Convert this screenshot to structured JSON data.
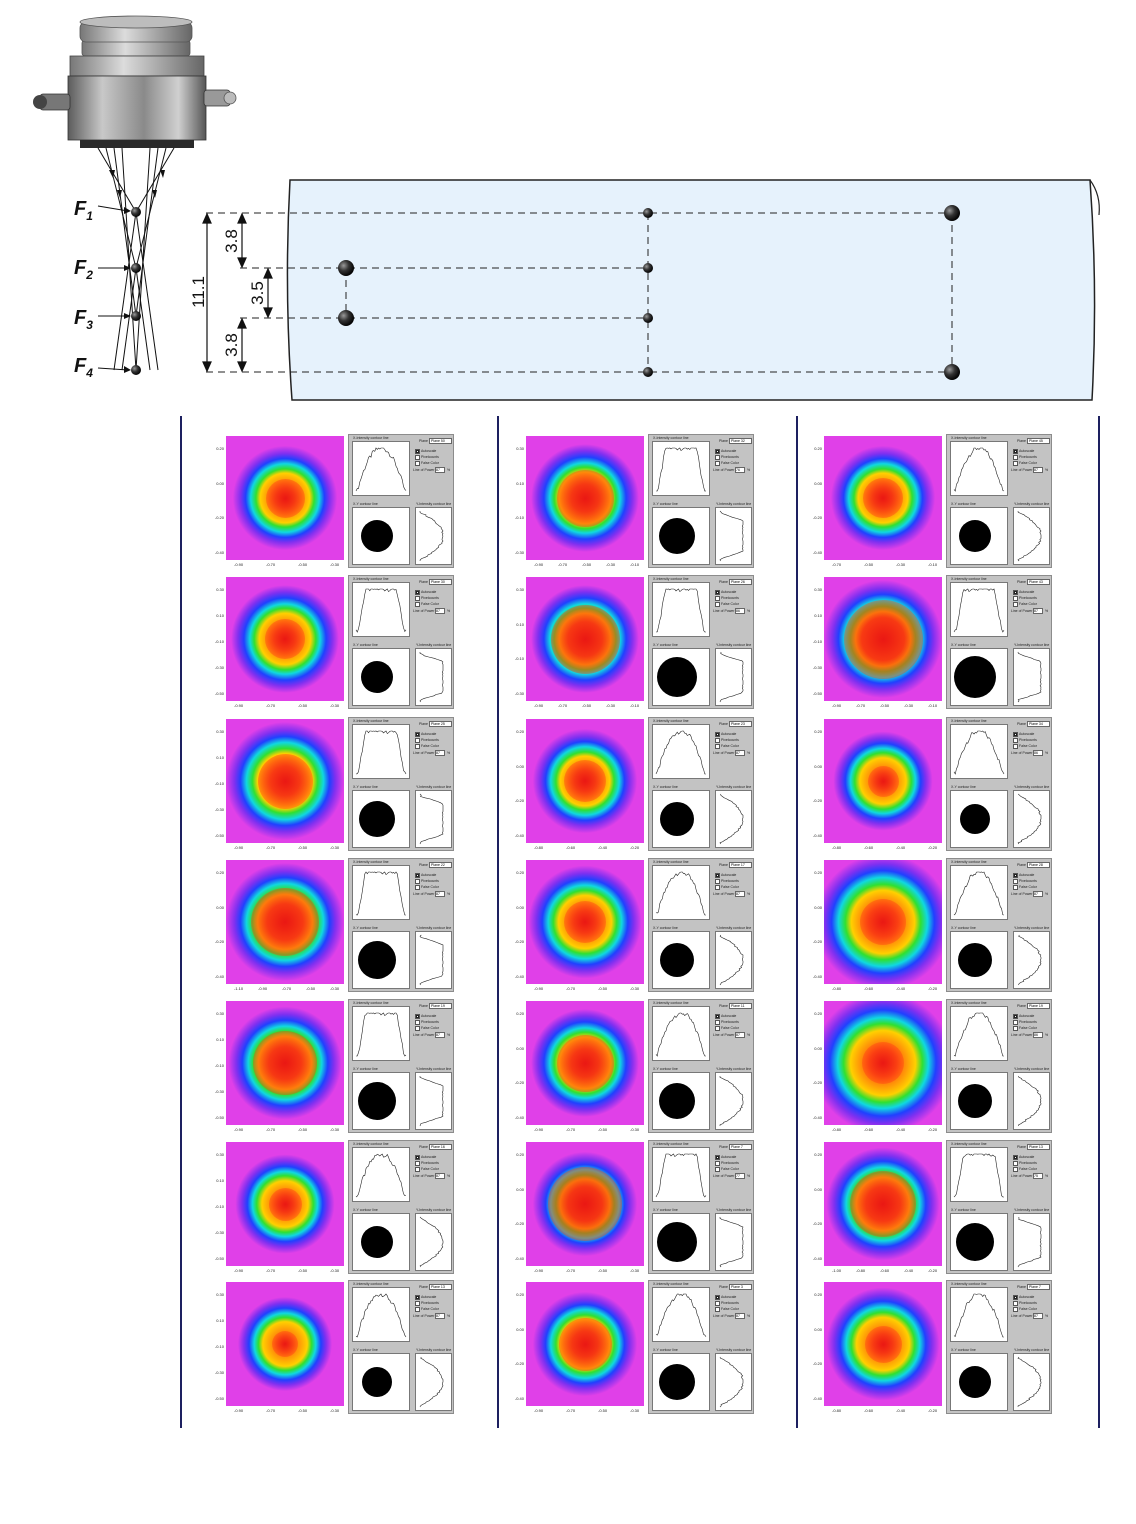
{
  "diagram": {
    "focus_labels": [
      {
        "letter": "F",
        "sub": "1"
      },
      {
        "letter": "F",
        "sub": "2"
      },
      {
        "letter": "F",
        "sub": "3"
      },
      {
        "letter": "F",
        "sub": "4"
      }
    ],
    "dimensions": {
      "total": "11.1",
      "top": "3.8",
      "middle": "3.5",
      "bottom": "3.8"
    },
    "colors": {
      "tube_fill": "#e6f2fc",
      "rule": "#1d2060",
      "beam_magenta": "#e040e8"
    }
  },
  "ui_labels": {
    "x_profile_title": "X-Intensity contour line",
    "y_profile_title": "Y-Intensity contour line",
    "xy_contour_title": "X-Y contour line",
    "plane_label": "Plane",
    "autoscale": "Autoscale",
    "pixelcounts": "Pixelcounts",
    "false_color": "False Color",
    "line_of_power": "Line of Power",
    "percent": "%"
  },
  "columns": [
    {
      "panels": [
        {
          "plane": "Plane 50",
          "power": "87",
          "y_ticks": [
            "0.20",
            "0.00",
            "-0.20",
            "-0.40"
          ],
          "x_ticks": [
            "-0.90",
            "-0.70",
            "-0.50",
            "-0.30"
          ]
        },
        {
          "plane": "Plane 30",
          "power": "87",
          "y_ticks": [
            "0.30",
            "0.10",
            "-0.10",
            "-0.30",
            "-0.50"
          ],
          "x_ticks": [
            "-0.90",
            "-0.70",
            "-0.50",
            "-0.30"
          ]
        },
        {
          "plane": "Plane 25",
          "power": "87",
          "y_ticks": [
            "0.30",
            "0.10",
            "-0.10",
            "-0.30",
            "-0.50"
          ],
          "x_ticks": [
            "-0.90",
            "-0.70",
            "-0.50",
            "-0.30"
          ]
        },
        {
          "plane": "Plane 22",
          "power": "87",
          "y_ticks": [
            "0.20",
            "0.00",
            "-0.20",
            "-0.40"
          ],
          "x_ticks": [
            "-1.10",
            "-0.90",
            "-0.70",
            "-0.50",
            "-0.30"
          ]
        },
        {
          "plane": "Plane 19",
          "power": "87",
          "y_ticks": [
            "0.30",
            "0.10",
            "-0.10",
            "-0.30",
            "-0.50"
          ],
          "x_ticks": [
            "-0.90",
            "-0.70",
            "-0.50",
            "-0.30"
          ]
        },
        {
          "plane": "Plane 16",
          "power": "87",
          "y_ticks": [
            "0.30",
            "0.10",
            "-0.10",
            "-0.30",
            "-0.50"
          ],
          "x_ticks": [
            "-0.90",
            "-0.70",
            "-0.50",
            "-0.30"
          ]
        },
        {
          "plane": "Plane 13",
          "power": "87",
          "y_ticks": [
            "0.30",
            "0.10",
            "-0.10",
            "-0.30",
            "-0.50"
          ],
          "x_ticks": [
            "-0.90",
            "-0.70",
            "-0.50",
            "-0.30"
          ]
        }
      ]
    },
    {
      "panels": [
        {
          "plane": "Plane 32",
          "power": "76",
          "y_ticks": [
            "0.30",
            "0.10",
            "-0.10",
            "-0.30"
          ],
          "x_ticks": [
            "-0.90",
            "-0.70",
            "-0.50",
            "-0.30",
            "-0.10"
          ]
        },
        {
          "plane": "Plane 26",
          "power": "86",
          "y_ticks": [
            "0.30",
            "0.10",
            "-0.10",
            "-0.30"
          ],
          "x_ticks": [
            "-0.90",
            "-0.70",
            "-0.50",
            "-0.30",
            "-0.10"
          ]
        },
        {
          "plane": "Plane 23",
          "power": "87",
          "y_ticks": [
            "0.20",
            "0.00",
            "-0.20",
            "-0.40"
          ],
          "x_ticks": [
            "-0.80",
            "-0.60",
            "-0.40",
            "-0.20"
          ]
        },
        {
          "plane": "Plane 17",
          "power": "87",
          "y_ticks": [
            "0.20",
            "0.00",
            "-0.20",
            "-0.40"
          ],
          "x_ticks": [
            "-0.90",
            "-0.70",
            "-0.50",
            "-0.30"
          ]
        },
        {
          "plane": "Plane 11",
          "power": "87",
          "y_ticks": [
            "0.20",
            "0.00",
            "-0.20",
            "-0.40"
          ],
          "x_ticks": [
            "-0.90",
            "-0.70",
            "-0.50",
            "-0.30"
          ]
        },
        {
          "plane": "Plane 7",
          "power": "77",
          "y_ticks": [
            "0.20",
            "0.00",
            "-0.20",
            "-0.40"
          ],
          "x_ticks": [
            "-0.90",
            "-0.70",
            "-0.50",
            "-0.30"
          ]
        },
        {
          "plane": "Plane 3",
          "power": "87",
          "y_ticks": [
            "0.20",
            "0.00",
            "-0.20",
            "-0.40"
          ],
          "x_ticks": [
            "-0.90",
            "-0.70",
            "-0.50",
            "-0.30"
          ]
        }
      ]
    },
    {
      "panels": [
        {
          "plane": "Plane 45",
          "power": "87",
          "y_ticks": [
            "0.20",
            "0.00",
            "-0.20",
            "-0.40"
          ],
          "x_ticks": [
            "-0.70",
            "-0.50",
            "-0.30",
            "-0.10"
          ]
        },
        {
          "plane": "Plane 43",
          "power": "87",
          "y_ticks": [
            "0.30",
            "0.10",
            "-0.10",
            "-0.30",
            "-0.50"
          ],
          "x_ticks": [
            "-0.90",
            "-0.70",
            "-0.50",
            "-0.30",
            "-0.10"
          ]
        },
        {
          "plane": "Plane 34",
          "power": "86",
          "y_ticks": [
            "0.20",
            "0.00",
            "-0.20",
            "-0.40"
          ],
          "x_ticks": [
            "-0.80",
            "-0.60",
            "-0.40",
            "-0.20"
          ]
        },
        {
          "plane": "Plane 28",
          "power": "87",
          "y_ticks": [
            "0.20",
            "0.00",
            "-0.20",
            "-0.40"
          ],
          "x_ticks": [
            "-0.80",
            "-0.60",
            "-0.40",
            "-0.20"
          ]
        },
        {
          "plane": "Plane 19",
          "power": "86",
          "y_ticks": [
            "0.20",
            "0.00",
            "-0.20",
            "-0.40"
          ],
          "x_ticks": [
            "-0.80",
            "-0.60",
            "-0.40",
            "-0.20"
          ]
        },
        {
          "plane": "Plane 13",
          "power": "75",
          "y_ticks": [
            "0.20",
            "0.00",
            "-0.20",
            "-0.40"
          ],
          "x_ticks": [
            "-1.00",
            "-0.80",
            "-0.60",
            "-0.40",
            "-0.20"
          ]
        },
        {
          "plane": "Plane 7",
          "power": "87",
          "y_ticks": [
            "0.20",
            "0.00",
            "-0.20",
            "-0.40"
          ],
          "x_ticks": [
            "-0.80",
            "-0.60",
            "-0.40",
            "-0.20"
          ]
        }
      ]
    }
  ]
}
